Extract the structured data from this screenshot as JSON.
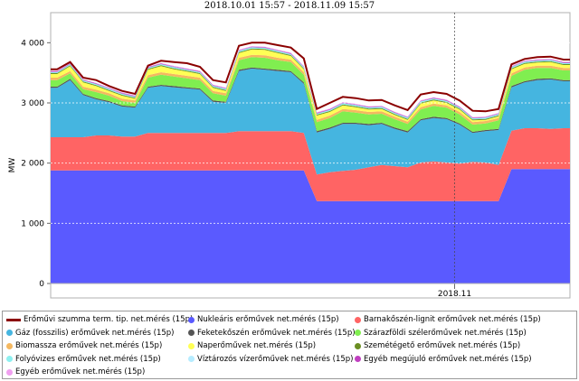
{
  "chart_data": {
    "type": "area",
    "stacked": true,
    "title": "2018.10.01 15:57  -  2018.11.09 15:57",
    "ylabel": "MW",
    "xlabel": "",
    "x_start": "2018-10-01 15:57",
    "x_end": "2018-11-09 15:57",
    "x_tick": "2018.11",
    "ylim": [
      0,
      4500
    ],
    "y_ticks": [
      "0",
      "1 000",
      "2 000",
      "3 000",
      "4 000"
    ],
    "y_tick_values": [
      0,
      1000,
      2000,
      3000,
      4000
    ],
    "grid": true,
    "legend_placement": "bottom",
    "x": [
      "2018-10-01",
      "2018-10-02",
      "2018-10-03",
      "2018-10-04",
      "2018-10-05",
      "2018-10-06",
      "2018-10-07",
      "2018-10-08",
      "2018-10-09",
      "2018-10-10",
      "2018-10-11",
      "2018-10-12",
      "2018-10-13",
      "2018-10-14",
      "2018-10-15",
      "2018-10-16",
      "2018-10-17",
      "2018-10-18",
      "2018-10-19",
      "2018-10-20",
      "2018-10-21",
      "2018-10-22",
      "2018-10-23",
      "2018-10-24",
      "2018-10-25",
      "2018-10-26",
      "2018-10-27",
      "2018-10-28",
      "2018-10-29",
      "2018-10-30",
      "2018-10-31",
      "2018-11-01",
      "2018-11-02",
      "2018-11-03",
      "2018-11-04",
      "2018-11-05",
      "2018-11-06",
      "2018-11-07",
      "2018-11-08",
      "2018-11-09"
    ],
    "series": [
      {
        "name": "Nukleáris erőművek net.mérés (15p)",
        "color": "#5a5aff",
        "values": [
          1880,
          1880,
          1880,
          1880,
          1880,
          1880,
          1880,
          1880,
          1880,
          1880,
          1880,
          1880,
          1880,
          1880,
          1880,
          1880,
          1880,
          1880,
          1880,
          1880,
          1370,
          1370,
          1370,
          1370,
          1370,
          1370,
          1370,
          1370,
          1370,
          1370,
          1370,
          1370,
          1370,
          1370,
          1370,
          1900,
          1900,
          1900,
          1900,
          1900
        ]
      },
      {
        "name": "Barnakőszén-lignit erőművek net.mérés (15p)",
        "color": "#ff6464",
        "values": [
          550,
          550,
          550,
          580,
          580,
          560,
          560,
          620,
          620,
          620,
          620,
          620,
          620,
          620,
          650,
          650,
          650,
          650,
          650,
          620,
          440,
          480,
          500,
          520,
          560,
          600,
          580,
          560,
          640,
          660,
          640,
          620,
          650,
          640,
          600,
          640,
          680,
          680,
          670,
          680
        ]
      },
      {
        "name": "Gáz (fosszilis) erőművek net.mérés (15p)",
        "color": "#45b5e0",
        "values": [
          820,
          950,
          700,
          600,
          550,
          500,
          480,
          750,
          780,
          760,
          740,
          720,
          520,
          500,
          1000,
          1040,
          1020,
          1000,
          980,
          820,
          700,
          720,
          780,
          760,
          700,
          680,
          620,
          580,
          700,
          720,
          720,
          650,
          480,
          520,
          580,
          720,
          760,
          800,
          820,
          780
        ]
      },
      {
        "name": "Feketekőszén erőművek net.mérés (15p)",
        "color": "#555555",
        "values": [
          20,
          20,
          20,
          20,
          20,
          20,
          20,
          20,
          20,
          20,
          20,
          20,
          20,
          20,
          20,
          20,
          20,
          20,
          20,
          20,
          20,
          20,
          20,
          20,
          20,
          20,
          20,
          20,
          20,
          20,
          20,
          20,
          20,
          20,
          20,
          20,
          20,
          20,
          20,
          20
        ]
      },
      {
        "name": "Szárazföldi szélerőművek net.mérés (15p)",
        "color": "#80ee50",
        "values": [
          110,
          90,
          80,
          100,
          90,
          70,
          60,
          150,
          170,
          160,
          150,
          140,
          120,
          100,
          160,
          170,
          180,
          160,
          150,
          130,
          150,
          160,
          190,
          170,
          160,
          150,
          140,
          120,
          160,
          180,
          170,
          150,
          120,
          110,
          140,
          170,
          190,
          180,
          170,
          160
        ]
      },
      {
        "name": "Biomassza erőművek net.mérés (15p)",
        "color": "#f5b860",
        "values": [
          40,
          40,
          40,
          40,
          40,
          40,
          40,
          40,
          40,
          40,
          40,
          40,
          40,
          40,
          40,
          40,
          40,
          40,
          40,
          40,
          40,
          40,
          40,
          40,
          40,
          40,
          40,
          40,
          40,
          40,
          40,
          40,
          40,
          40,
          40,
          40,
          40,
          40,
          40,
          40
        ]
      },
      {
        "name": "Naperőművek net.mérés (15p)",
        "color": "#ffff55",
        "values": [
          60,
          80,
          70,
          60,
          40,
          50,
          30,
          90,
          100,
          80,
          70,
          60,
          50,
          40,
          80,
          90,
          90,
          80,
          60,
          50,
          70,
          60,
          60,
          50,
          40,
          40,
          30,
          30,
          60,
          50,
          40,
          40,
          30,
          20,
          30,
          70,
          60,
          50,
          60,
          50
        ]
      },
      {
        "name": "Szemétégető erőművek net.mérés (15p)",
        "color": "#6b8e23",
        "values": [
          15,
          15,
          15,
          15,
          15,
          15,
          15,
          15,
          15,
          15,
          15,
          15,
          15,
          15,
          15,
          15,
          15,
          15,
          15,
          15,
          15,
          15,
          15,
          15,
          15,
          15,
          15,
          15,
          15,
          15,
          15,
          15,
          15,
          15,
          15,
          15,
          15,
          15,
          15,
          15
        ]
      },
      {
        "name": "Folyóvizes erőművek net.mérés (15p)",
        "color": "#8ef0f0",
        "values": [
          20,
          20,
          20,
          20,
          20,
          20,
          20,
          20,
          20,
          20,
          20,
          20,
          20,
          20,
          20,
          20,
          20,
          20,
          20,
          20,
          20,
          20,
          20,
          20,
          20,
          20,
          20,
          20,
          20,
          20,
          20,
          20,
          20,
          20,
          20,
          20,
          20,
          20,
          20,
          20
        ]
      },
      {
        "name": "Víztározós vízerőművek net.mérés (15p)",
        "color": "#b6ecff",
        "values": [
          0,
          0,
          0,
          0,
          0,
          0,
          0,
          0,
          0,
          0,
          0,
          0,
          0,
          0,
          0,
          0,
          0,
          0,
          0,
          0,
          0,
          0,
          0,
          0,
          0,
          0,
          0,
          0,
          0,
          0,
          0,
          0,
          0,
          0,
          0,
          0,
          0,
          0,
          0,
          0
        ]
      },
      {
        "name": "Egyéb megújuló erőművek net.mérés (15p)",
        "color": "#c040c0",
        "values": [
          10,
          10,
          10,
          10,
          10,
          10,
          10,
          10,
          10,
          10,
          10,
          10,
          10,
          10,
          10,
          10,
          10,
          10,
          10,
          10,
          10,
          10,
          10,
          10,
          10,
          10,
          10,
          10,
          10,
          10,
          10,
          10,
          10,
          10,
          10,
          10,
          10,
          10,
          10,
          10
        ]
      },
      {
        "name": "Egyéb erőművek net.mérés (15p)",
        "color": "#f0a0f0",
        "values": [
          10,
          10,
          10,
          10,
          10,
          10,
          10,
          10,
          10,
          10,
          10,
          10,
          10,
          10,
          10,
          10,
          10,
          10,
          10,
          10,
          10,
          10,
          10,
          10,
          10,
          10,
          10,
          10,
          10,
          10,
          10,
          10,
          10,
          10,
          10,
          10,
          10,
          10,
          10,
          10
        ]
      }
    ],
    "total_line": {
      "name": "Erőművi szumma term. tip. net.mérés (15p)",
      "color": "#8b0000",
      "values": [
        3560,
        3680,
        3420,
        3380,
        3280,
        3200,
        3150,
        3620,
        3700,
        3680,
        3660,
        3600,
        3380,
        3340,
        3950,
        4000,
        4000,
        3960,
        3920,
        3740,
        2900,
        3000,
        3100,
        3080,
        3040,
        3050,
        2960,
        2880,
        3140,
        3180,
        3150,
        3040,
        2870,
        2860,
        2900,
        3640,
        3730,
        3760,
        3770,
        3720
      ]
    }
  }
}
